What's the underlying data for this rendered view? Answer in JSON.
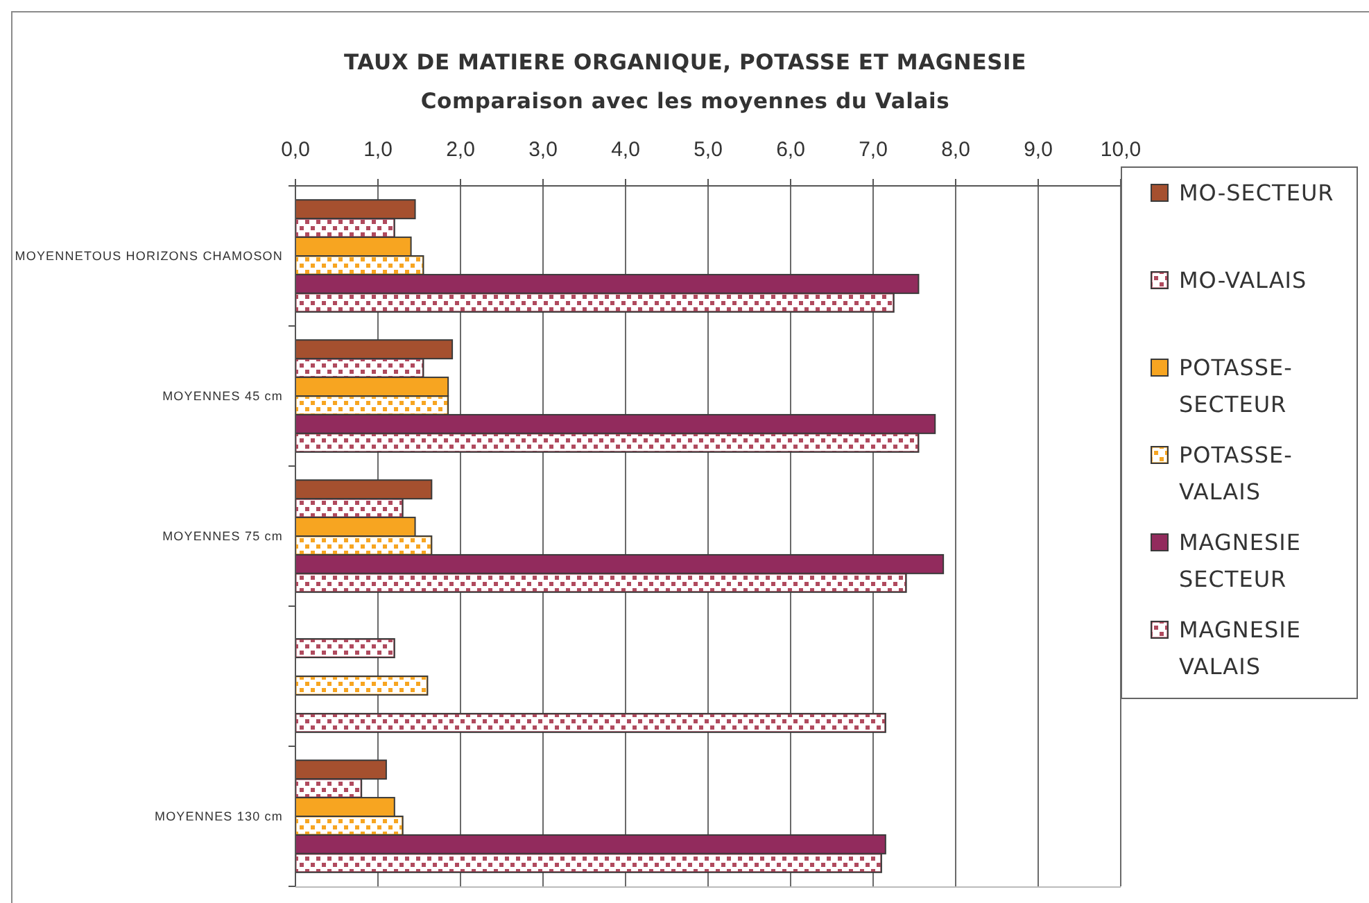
{
  "chart_data": {
    "type": "bar",
    "orientation": "horizontal",
    "title": "TAUX DE MATIERE ORGANIQUE, POTASSE ET MAGNESIE",
    "subtitle": "Comparaison avec les moyennes du Valais",
    "categories": [
      "MOYENNETOUS HORIZONS CHAMOSON",
      "MOYENNES 45 cm",
      "MOYENNES 75 cm",
      null,
      "MOYENNES 130 cm"
    ],
    "series": [
      {
        "name": "MO-SECTEUR",
        "color": "#a5502f",
        "values": [
          1.45,
          1.9,
          1.65,
          null,
          1.1
        ]
      },
      {
        "name": "MO-VALAIS",
        "color": "#b04a5e",
        "values": [
          1.2,
          1.55,
          1.3,
          1.2,
          0.8
        ]
      },
      {
        "name": "POTASSE-SECTEUR",
        "color": "#f7a521",
        "values": [
          1.4,
          1.85,
          1.45,
          null,
          1.2
        ]
      },
      {
        "name": "POTASSE-VALAIS",
        "color": "#f7a521",
        "values": [
          1.55,
          1.85,
          1.65,
          1.6,
          1.3
        ]
      },
      {
        "name": "MAGNESIE SECTEUR",
        "color": "#922b5d",
        "values": [
          7.55,
          7.75,
          7.85,
          null,
          7.15
        ]
      },
      {
        "name": "MAGNESIE VALAIS",
        "color": "#b04a5e",
        "values": [
          7.25,
          7.55,
          7.4,
          7.15,
          7.1
        ]
      }
    ],
    "xlim": [
      0,
      10
    ],
    "xticks": [
      {
        "value": 0,
        "label": "0,0"
      },
      {
        "value": 1,
        "label": "1,0"
      },
      {
        "value": 2,
        "label": "2,0"
      },
      {
        "value": 3,
        "label": "3,0"
      },
      {
        "value": 4,
        "label": "4,0"
      },
      {
        "value": 5,
        "label": "5,0"
      },
      {
        "value": 6,
        "label": "6,0"
      },
      {
        "value": 7,
        "label": "7,0"
      },
      {
        "value": 8,
        "label": "8,0"
      },
      {
        "value": 9,
        "label": "9,0"
      },
      {
        "value": 10,
        "label": "10,0"
      }
    ],
    "grid": "x",
    "legend": "right"
  }
}
